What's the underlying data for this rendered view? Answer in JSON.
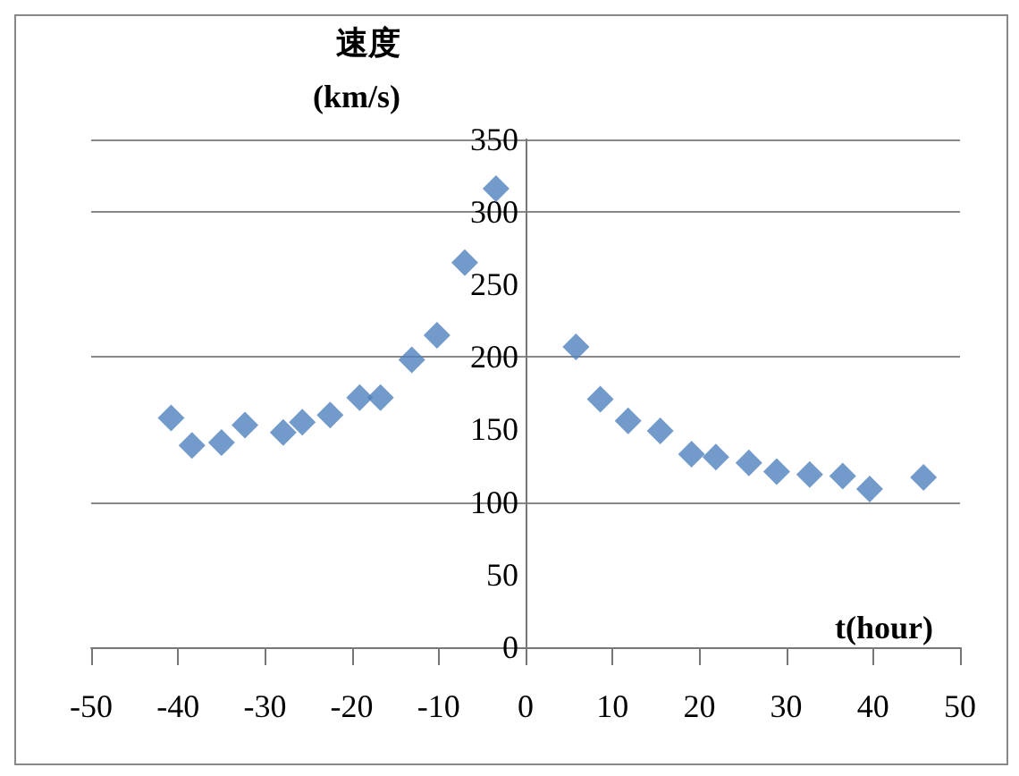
{
  "chart_data": {
    "type": "scatter",
    "xlabel": "t(hour)",
    "ylabel": "速度\n(km/s)",
    "xlim": [
      -50,
      50
    ],
    "xticks": [
      -50,
      -40,
      -30,
      -20,
      -10,
      0,
      10,
      20,
      30,
      40,
      50
    ],
    "ylim": [
      0,
      350
    ],
    "yticks": [
      0,
      50,
      100,
      150,
      200,
      250,
      300,
      350
    ],
    "grid": "y",
    "marker": "diamond",
    "series": [
      {
        "color": "#4f81bd",
        "x": [
          -40.8,
          -38.4,
          -35,
          -32.3,
          -27.9,
          -25.7,
          -22.5,
          -19.1,
          -16.7,
          -13.1,
          -10.2,
          -7,
          -3.4,
          5.8,
          8.6,
          11.8,
          15.5,
          19.1,
          21.9,
          25.7,
          28.9,
          32.7,
          36.5,
          39.6,
          45.8
        ],
        "values": [
          158,
          139,
          141,
          153,
          148,
          155,
          160,
          172,
          172,
          198,
          215,
          265,
          316,
          207,
          171,
          156,
          149,
          133,
          131,
          127,
          121,
          119,
          118,
          109,
          117
        ]
      }
    ]
  }
}
